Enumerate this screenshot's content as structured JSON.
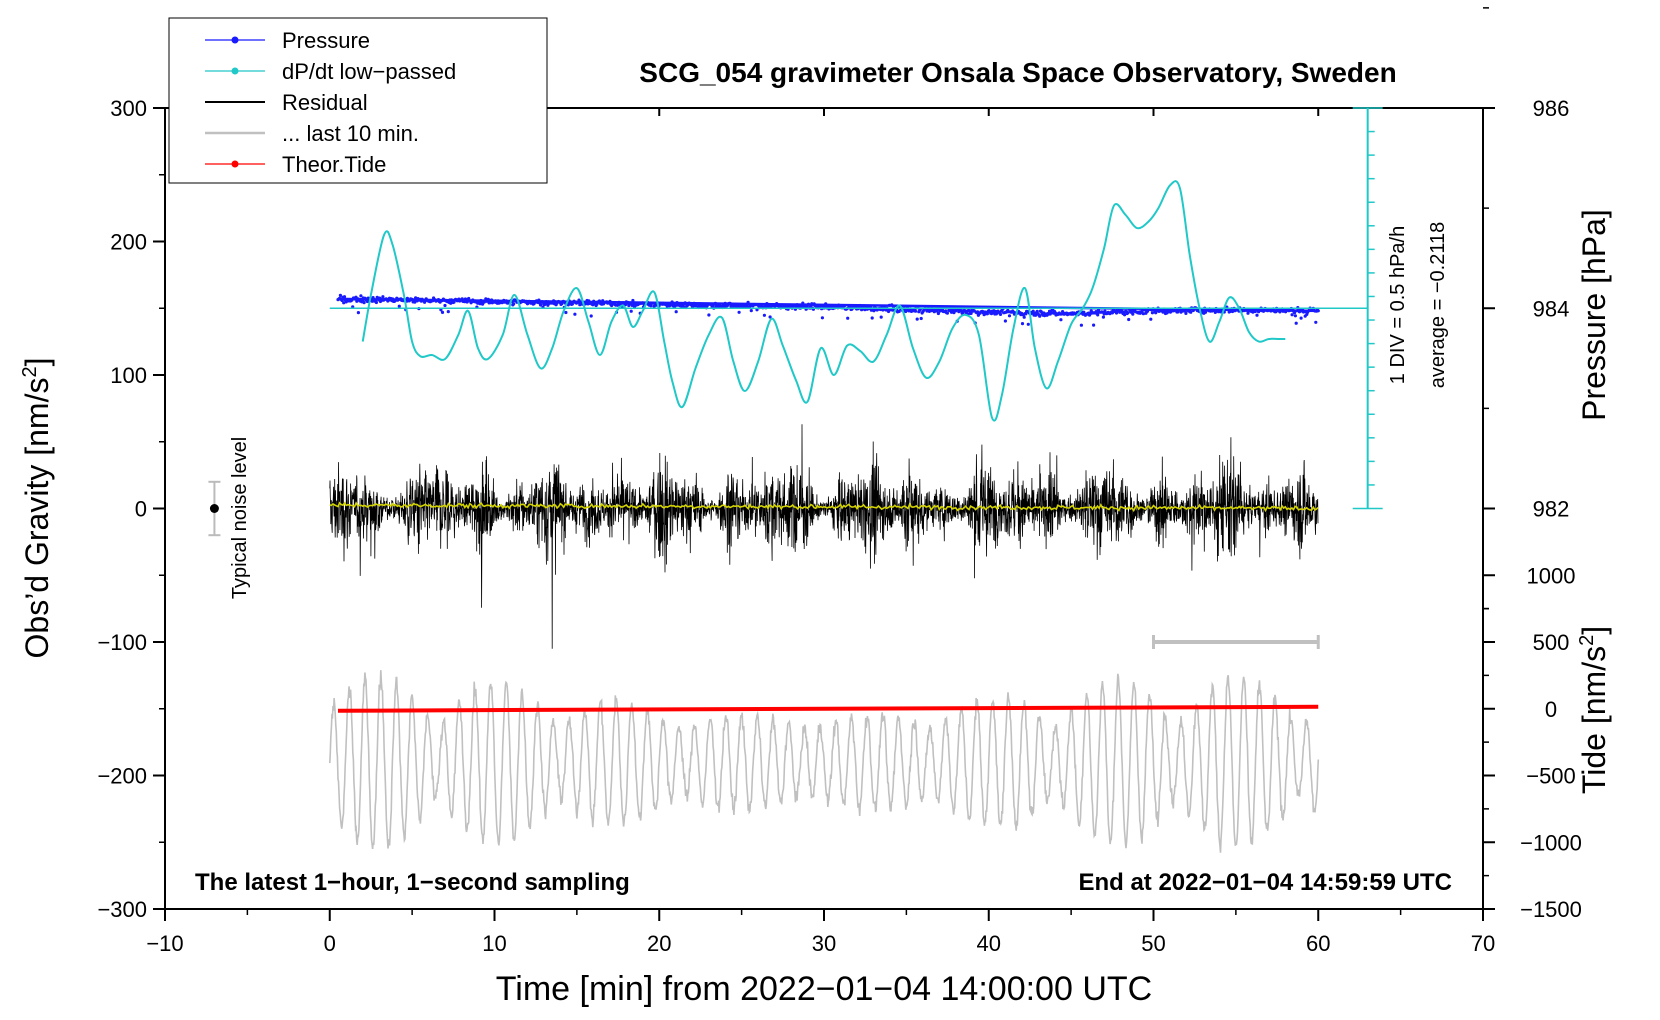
{
  "chart_data": {
    "type": "line",
    "title": "SCG_054 gravimeter Onsala Space Observatory, Sweden",
    "xlabel": "Time [min] from 2022−01−04 14:00:00 UTC",
    "ylabel_left_main": "Obs’d Gravity [nm/s",
    "ylabel_left_sup": "2",
    "ylabel_left_end": "]",
    "ylabel_right_pressure": "Pressure [hPa]",
    "ylabel_right_tide_main": "Tide [nm/s",
    "ylabel_right_tide_sup": "2",
    "ylabel_right_tide_end": "]",
    "xlim": [
      -10,
      70
    ],
    "ylim": [
      -300,
      300
    ],
    "x_ticks": [
      -10,
      0,
      10,
      20,
      30,
      40,
      50,
      60,
      70
    ],
    "x_tick_labels": [
      "−10",
      "0",
      "10",
      "20",
      "30",
      "40",
      "50",
      "60",
      "70"
    ],
    "y_ticks": [
      300,
      200,
      100,
      0,
      -100,
      -200,
      -300
    ],
    "y_tick_labels": [
      "300",
      "200",
      "100",
      "0",
      "−100",
      "−200",
      "−300"
    ],
    "pressure_axis": {
      "ticks": [
        986,
        984,
        982
      ],
      "tick_labels": [
        "986",
        "984",
        "982"
      ],
      "gravity_at_984": 150,
      "gravity_per_hpa": 75
    },
    "tide_axis": {
      "ticks": [
        1000,
        500,
        0,
        -500,
        -1000,
        -1500
      ],
      "tick_labels": [
        "1000",
        "500",
        "0",
        "−500",
        "−1000",
        "−1500"
      ],
      "gravity_at_0": -150,
      "gravity_per_unit": 0.1
    },
    "dpdt_scale": {
      "label_div": "1 DIV = 0.5 hPa/h",
      "label_avg": "average = −0.2118",
      "x_position": 63,
      "y_top": 300,
      "y_bottom": 0,
      "divisions": 17
    },
    "noise_level": {
      "label": "Typical noise level",
      "x": -7,
      "center": 0,
      "half_range": 20
    },
    "last10_bar": {
      "x_start": 50,
      "x_end": 60,
      "y": -100
    },
    "annotation_left": "The latest 1−hour, 1−second sampling",
    "annotation_right": "End at 2022−01−04 14:59:59 UTC",
    "legend": [
      {
        "label": "Pressure",
        "color": "#1a1aff",
        "marker": true
      },
      {
        "label": "dP/dt low−passed",
        "color": "#20c8c8",
        "marker": true
      },
      {
        "label": "Residual",
        "color": "#000000",
        "marker": false
      },
      {
        "label": "... last 10 min.",
        "color": "#c0c0c0",
        "marker": false
      },
      {
        "label": "Theor.Tide",
        "color": "#ff0000",
        "marker": true
      }
    ],
    "series": [
      {
        "name": "dP/dt low-passed",
        "color": "#20c8c8",
        "x": [
          2.0,
          2.5,
          3.3,
          3.8,
          4.5,
          5.0,
          5.5,
          6.2,
          7.0,
          7.8,
          8.4,
          9.0,
          9.6,
          10.5,
          11.2,
          12.0,
          12.8,
          13.5,
          14.2,
          15.0,
          15.7,
          16.4,
          17.1,
          17.8,
          18.4,
          19.0,
          19.7,
          20.3,
          20.8,
          21.4,
          22.2,
          23.0,
          23.8,
          24.5,
          25.2,
          26.0,
          26.8,
          27.5,
          28.3,
          29.0,
          29.8,
          30.6,
          31.4,
          32.2,
          33.0,
          33.8,
          34.6,
          35.4,
          36.2,
          37.0,
          37.8,
          38.6,
          39.4,
          40.2,
          40.8,
          41.5,
          42.2,
          42.8,
          43.5,
          44.2,
          45.0,
          45.7,
          46.3,
          47.0,
          47.6,
          48.3,
          49.0,
          49.7,
          50.3,
          51.0,
          51.6,
          52.2,
          52.8,
          53.4,
          54.0,
          54.6,
          55.2,
          55.8,
          56.4,
          57.0,
          57.6,
          58.0
        ],
        "y": [
          125,
          160,
          205,
          198,
          160,
          125,
          114,
          115,
          112,
          130,
          148,
          120,
          112,
          130,
          160,
          130,
          105,
          120,
          148,
          165,
          140,
          115,
          140,
          152,
          136,
          148,
          162,
          125,
          95,
          76,
          105,
          130,
          143,
          110,
          88,
          110,
          142,
          122,
          96,
          80,
          120,
          100,
          122,
          118,
          110,
          130,
          152,
          120,
          98,
          110,
          135,
          145,
          130,
          68,
          85,
          135,
          165,
          120,
          90,
          110,
          138,
          150,
          165,
          195,
          227,
          220,
          210,
          215,
          225,
          242,
          240,
          190,
          150,
          125,
          140,
          158,
          150,
          132,
          125,
          127,
          127,
          127
        ]
      },
      {
        "name": "Pressure",
        "color": "#1a1aff",
        "x": [
          0.5,
          10,
          20,
          30,
          40,
          45,
          50,
          55,
          60
        ],
        "y": [
          157,
          155,
          153,
          151,
          147,
          146,
          148,
          149,
          148
        ]
      },
      {
        "name": "Theor.Tide",
        "color": "#ff0000",
        "x": [
          0.5,
          60
        ],
        "y": [
          -151.5,
          -148.5
        ]
      }
    ]
  }
}
